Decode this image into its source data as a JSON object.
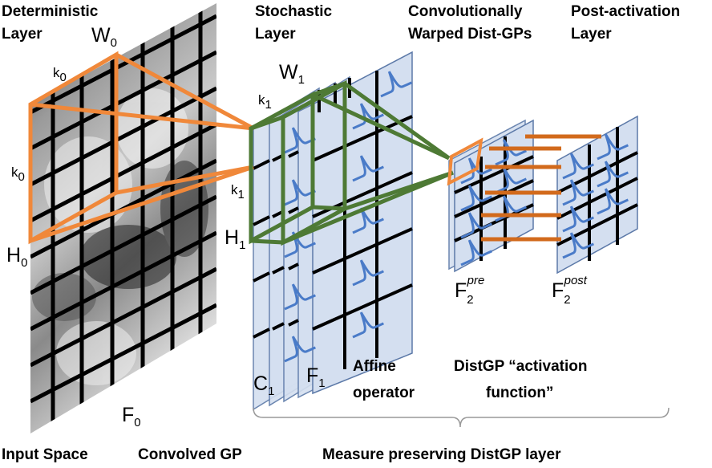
{
  "headers": {
    "deterministic_line1": "Deterministic",
    "deterministic_line2": "Layer",
    "stochastic_line1": "Stochastic",
    "stochastic_line2": "Layer",
    "warped_line1": "Convolutionally",
    "warped_line2": "Warped Dist-GPs",
    "postact_line1": "Post-activation",
    "postact_line2": "Layer"
  },
  "symbols": {
    "W0": "W",
    "W0_sub": "0",
    "k0_top": "k",
    "k0_top_sub": "0",
    "k0_side": "k",
    "k0_side_sub": "0",
    "H0": "H",
    "H0_sub": "0",
    "F0": "F",
    "F0_sub": "0",
    "W1": "W",
    "W1_sub": "1",
    "k1_top": "k",
    "k1_top_sub": "1",
    "k1_side": "k",
    "k1_side_sub": "1",
    "H1": "H",
    "H1_sub": "1",
    "C1": "C",
    "C1_sub": "1",
    "F1": "F",
    "F1_sub": "1",
    "F2pre": "F",
    "F2pre_sub": "2",
    "F2pre_sup": "pre",
    "F2post": "F",
    "F2post_sub": "2",
    "F2post_sup": "post"
  },
  "annotations": {
    "affine_line1": "Affine",
    "affine_line2": "operator",
    "distgp_line1": "DistGP “activation",
    "distgp_line2": "function”"
  },
  "footer": {
    "input_space": "Input Space",
    "convolved_gp": "Convolved GP",
    "measure_preserving": "Measure preserving DistGP layer"
  },
  "colors": {
    "orange": "#f0883a",
    "green": "#4e7a35",
    "dark_orange": "#d26a1c",
    "panel_fill": "#d4dff0",
    "panel_stroke": "#5c79a8",
    "curve": "#4a7bc8",
    "grid": "#000000"
  }
}
